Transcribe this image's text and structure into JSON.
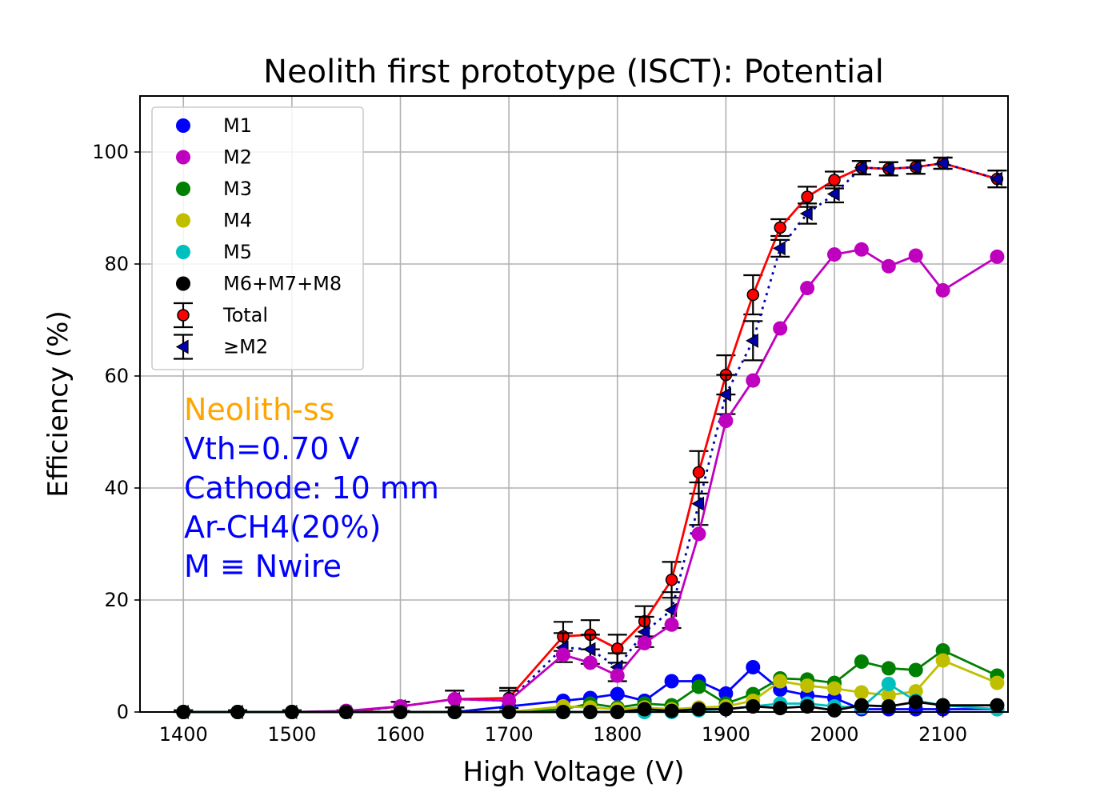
{
  "chart_data": {
    "type": "line",
    "title": "Neolith first prototype (ISCT): Potential",
    "xlabel": "High Voltage (V)",
    "ylabel": "Efficiency (%)",
    "xlim": [
      1360,
      2160
    ],
    "ylim": [
      0,
      110
    ],
    "xticks": [
      1400,
      1500,
      1600,
      1700,
      1800,
      1900,
      2000,
      2100
    ],
    "yticks": [
      0,
      20,
      40,
      60,
      80,
      100
    ],
    "grid": true,
    "legend_position": "upper-left",
    "x": [
      1400,
      1450,
      1500,
      1550,
      1600,
      1650,
      1700,
      1750,
      1775,
      1800,
      1825,
      1850,
      1875,
      1900,
      1925,
      1950,
      1975,
      2000,
      2025,
      2050,
      2075,
      2100,
      2150
    ],
    "series": [
      {
        "name": "M1",
        "color": "#0000ff",
        "marker": "circle",
        "line": "solid",
        "values": [
          0,
          0,
          0,
          0,
          0,
          0,
          1.0,
          2.0,
          2.5,
          3.2,
          2.0,
          5.5,
          5.5,
          3.3,
          8.0,
          4.0,
          3.0,
          2.5,
          0.5,
          0.5,
          0.5,
          0.5,
          0.5
        ]
      },
      {
        "name": "M2",
        "color": "#bf00bf",
        "marker": "circle",
        "line": "solid",
        "values": [
          0,
          0,
          0,
          0.2,
          1.0,
          2.3,
          2.0,
          10.2,
          8.8,
          6.5,
          12.3,
          15.6,
          31.8,
          52.0,
          59.2,
          68.5,
          75.7,
          81.7,
          82.6,
          79.6,
          81.5,
          75.3,
          81.3
        ]
      },
      {
        "name": "M3",
        "color": "#008000",
        "marker": "circle",
        "line": "solid",
        "values": [
          0,
          0,
          0,
          0,
          0,
          0,
          0,
          0.5,
          1.5,
          0.8,
          1.5,
          1.2,
          4.5,
          1.5,
          3.2,
          6.0,
          5.8,
          5.2,
          9.0,
          7.8,
          7.5,
          11.0,
          6.5
        ]
      },
      {
        "name": "M4",
        "color": "#bfbf00",
        "marker": "circle",
        "line": "solid",
        "values": [
          0,
          0,
          0,
          0,
          0,
          0,
          0,
          1.0,
          0.8,
          0.5,
          0.8,
          0.5,
          0.8,
          1.0,
          2.0,
          5.5,
          4.7,
          4.2,
          3.5,
          3.0,
          3.7,
          9.2,
          5.2
        ]
      },
      {
        "name": "M5",
        "color": "#00bfbf",
        "marker": "circle",
        "line": "solid",
        "values": [
          0,
          0,
          0,
          0,
          0,
          0,
          0,
          0,
          0,
          0,
          0,
          0,
          0.3,
          0.5,
          1.0,
          1.5,
          1.5,
          1.0,
          0.8,
          5.0,
          2.0,
          1.2,
          0.5
        ]
      },
      {
        "name": "M6+M7+M8",
        "color": "#000000",
        "marker": "circle",
        "line": "solid",
        "values": [
          0,
          0,
          0,
          0,
          0,
          0,
          0,
          0,
          0,
          0,
          0.5,
          0.2,
          0.5,
          0.5,
          1.0,
          0.7,
          1.0,
          0.3,
          1.2,
          1.0,
          1.8,
          1.2,
          1.2
        ]
      },
      {
        "name": "Total",
        "color": "#ff0000",
        "marker": "circle-errorbar",
        "line": "solid",
        "values": [
          0,
          0,
          0,
          0,
          1.0,
          2.3,
          2.5,
          13.5,
          13.8,
          11.3,
          16.2,
          23.6,
          42.8,
          60.2,
          74.5,
          86.5,
          92.0,
          95.0,
          97.2,
          97.0,
          97.3,
          98.0,
          95.2
        ],
        "errors": [
          0.3,
          0.3,
          0.3,
          0.3,
          0.8,
          1.5,
          1.8,
          2.6,
          2.6,
          2.5,
          2.7,
          3.2,
          3.8,
          3.5,
          3.5,
          1.5,
          1.8,
          1.5,
          1.2,
          1.2,
          1.2,
          1.0,
          1.5
        ]
      },
      {
        "name": "≥M2",
        "color": "#0000aa",
        "marker": "triangle-left-errorbar",
        "line": "dotted",
        "values": [
          0,
          0,
          0,
          0,
          1.0,
          2.3,
          2.0,
          11.5,
          11.2,
          8.0,
          14.3,
          18.2,
          37.2,
          56.7,
          66.3,
          82.8,
          89.0,
          92.5,
          97.2,
          97.0,
          97.3,
          98.0,
          95.2
        ],
        "errors": [
          0.3,
          0.3,
          0.3,
          0.3,
          0.8,
          1.5,
          1.8,
          2.6,
          2.6,
          2.5,
          2.7,
          3.2,
          3.8,
          3.5,
          3.5,
          1.5,
          1.8,
          1.5,
          1.2,
          1.2,
          1.2,
          1.0,
          1.5
        ]
      }
    ],
    "annotations": [
      {
        "text": "Neolith-ss",
        "color": "#ffa500"
      },
      {
        "text": "Vth=0.70 V",
        "color": "#0000ff"
      },
      {
        "text": "Cathode: 10 mm",
        "color": "#0000ff"
      },
      {
        "text": "Ar-CH4(20%)",
        "color": "#0000ff"
      },
      {
        "text": "M ≡ Nwire",
        "color": "#0000ff"
      }
    ]
  }
}
